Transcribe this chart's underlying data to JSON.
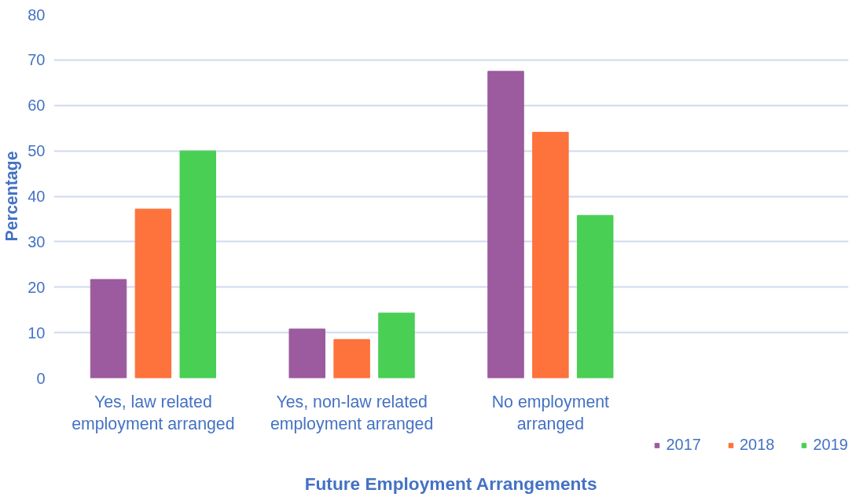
{
  "chart_data": {
    "type": "bar",
    "categories": [
      "Yes, law related\nemployment arranged",
      "Yes, non-law related\nemployment arranged",
      "No employment\narranged",
      null
    ],
    "series": [
      {
        "name": "2017",
        "color": "#9b5b9e",
        "values": [
          21.7,
          10.8,
          67.5,
          null
        ]
      },
      {
        "name": "2018",
        "color": "#fe723c",
        "values": [
          37.2,
          8.5,
          54.1,
          null
        ]
      },
      {
        "name": "2019",
        "color": "#4acf55",
        "values": [
          50,
          14.3,
          35.8,
          null
        ]
      }
    ],
    "xlabel": "Future Employment Arrangements",
    "ylabel": "Percentage",
    "ylim": [
      0,
      80
    ],
    "yticks": [
      0,
      10,
      20,
      30,
      40,
      50,
      60,
      70,
      80
    ],
    "grid": "y",
    "legend": "bottom right"
  }
}
